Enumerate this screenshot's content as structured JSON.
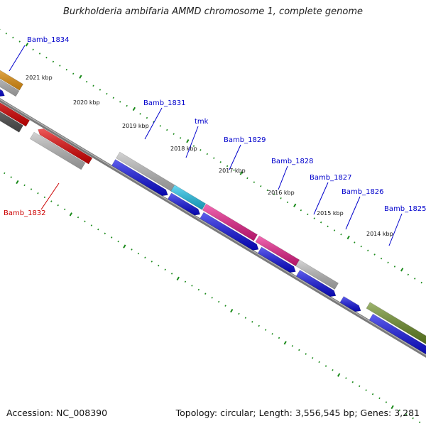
{
  "title": "Burkholderia ambifaria AMMD chromosome 1, complete genome",
  "accession": "Accession: NC_008390",
  "summary": "Topology: circular; Length: 3,556,545 bp; Genes: 3,281",
  "ruler_labels": [
    "2021 kbp",
    "2020 kbp",
    "2019 kbp",
    "2018 kbp",
    "2017 kbp",
    "2016 kbp",
    "2015 kbp",
    "2014 kbp"
  ],
  "gene_labels": [
    {
      "name": "Bamb_1834",
      "color": "#0000cc"
    },
    {
      "name": "Bamb_1831",
      "color": "#0000cc"
    },
    {
      "name": "tmk",
      "color": "#0000cc"
    },
    {
      "name": "Bamb_1829",
      "color": "#0000cc"
    },
    {
      "name": "Bamb_1828",
      "color": "#0000cc"
    },
    {
      "name": "Bamb_1827",
      "color": "#0000cc"
    },
    {
      "name": "Bamb_1826",
      "color": "#0000cc"
    },
    {
      "name": "Bamb_1825",
      "color": "#0000cc"
    },
    {
      "name": "Bamb_1832",
      "color": "#cc0000"
    }
  ],
  "colors": {
    "backbone": "#7a7a7a",
    "tick": "#1a8a1a",
    "cds_forward": "#0a0ae6",
    "feature_gray": "#bdbdbd",
    "feature_red": "#e60000",
    "feature_pink": "#ee1c8c",
    "feature_cyan": "#1cc6ee",
    "feature_olive": "#6b8e23",
    "feature_orange": "#f39c12",
    "feature_darkgray": "#555555"
  }
}
